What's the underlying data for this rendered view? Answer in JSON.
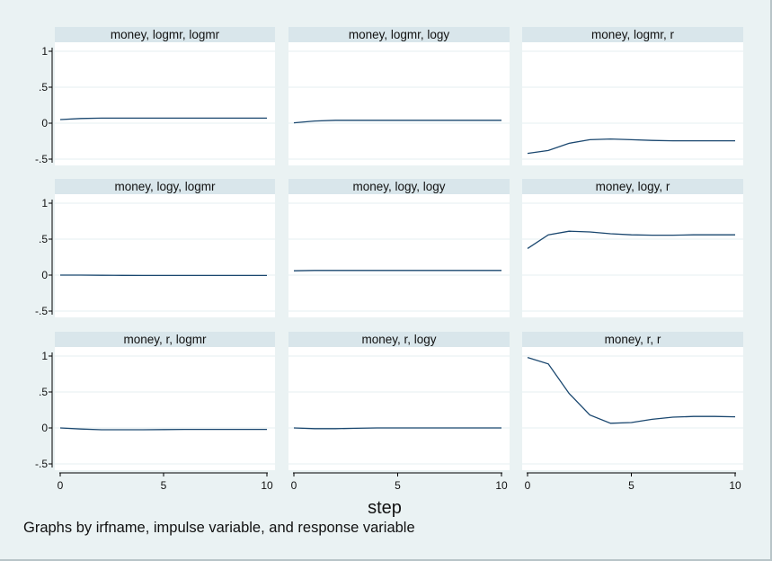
{
  "colors": {
    "background": "#eaf2f3",
    "plot_area": "#ffffff",
    "title_strip": "#d9e6eb",
    "grid": "#eaf2f3",
    "line": "#1a476f",
    "axis": "#000000"
  },
  "footnote": "Graphs by irfname, impulse variable, and response variable",
  "chart_data": {
    "type": "line",
    "layout": "small-multiples-3x3",
    "xlabel": "step",
    "ylabel": "",
    "xlim": [
      0,
      10
    ],
    "ylim": [
      -0.55,
      1.05
    ],
    "xticks": [
      0,
      5,
      10
    ],
    "xtick_labels": [
      "0",
      "5",
      "10"
    ],
    "yticks": [
      1,
      0.5,
      0,
      -0.5
    ],
    "ytick_labels": [
      "1",
      ".5",
      "0",
      "-.5"
    ],
    "grid": true,
    "x": [
      0,
      1,
      2,
      3,
      4,
      5,
      6,
      7,
      8,
      9,
      10
    ],
    "panels": [
      {
        "title": "money, logmr, logmr",
        "values": [
          0.05,
          0.065,
          0.07,
          0.07,
          0.07,
          0.07,
          0.07,
          0.07,
          0.07,
          0.07,
          0.07
        ]
      },
      {
        "title": "money, logmr, logy",
        "values": [
          0.005,
          0.03,
          0.04,
          0.04,
          0.04,
          0.04,
          0.04,
          0.04,
          0.04,
          0.04,
          0.04
        ]
      },
      {
        "title": "money, logmr, r",
        "values": [
          -0.42,
          -0.38,
          -0.28,
          -0.23,
          -0.22,
          -0.23,
          -0.24,
          -0.245,
          -0.245,
          -0.245,
          -0.245
        ]
      },
      {
        "title": "money, logy, logmr",
        "values": [
          0.0,
          0.0,
          -0.002,
          -0.004,
          -0.005,
          -0.005,
          -0.005,
          -0.005,
          -0.005,
          -0.005,
          -0.005
        ]
      },
      {
        "title": "money, logy, logy",
        "values": [
          0.06,
          0.065,
          0.065,
          0.065,
          0.065,
          0.065,
          0.065,
          0.065,
          0.065,
          0.065,
          0.065
        ]
      },
      {
        "title": "money, logy, r",
        "values": [
          0.37,
          0.56,
          0.61,
          0.6,
          0.575,
          0.56,
          0.555,
          0.555,
          0.56,
          0.56,
          0.56
        ]
      },
      {
        "title": "money, r, logmr",
        "values": [
          0.0,
          -0.015,
          -0.025,
          -0.025,
          -0.025,
          -0.022,
          -0.02,
          -0.02,
          -0.02,
          -0.02,
          -0.02
        ]
      },
      {
        "title": "money, r, logy",
        "values": [
          0.0,
          -0.01,
          -0.01,
          -0.005,
          0.0,
          0.0,
          0.0,
          0.0,
          0.0,
          0.0,
          0.0
        ]
      },
      {
        "title": "money, r, r",
        "values": [
          0.98,
          0.89,
          0.48,
          0.18,
          0.065,
          0.075,
          0.12,
          0.15,
          0.16,
          0.16,
          0.155
        ]
      }
    ]
  }
}
